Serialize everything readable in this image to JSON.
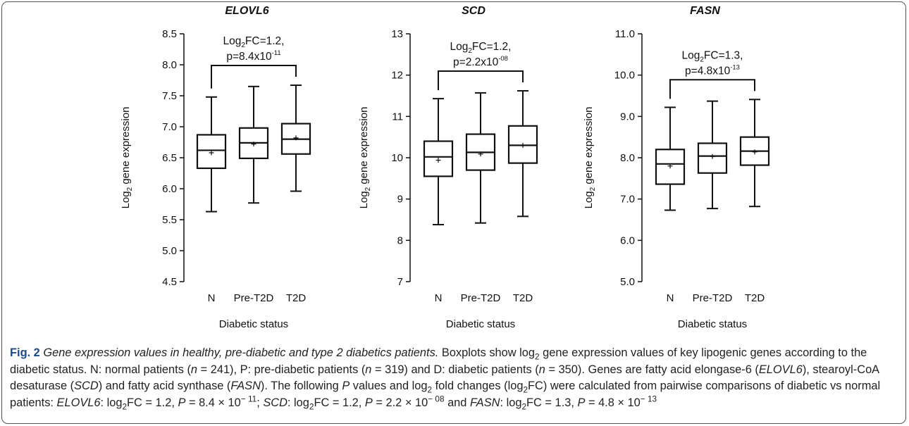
{
  "chart_data": [
    {
      "type": "box",
      "title": "ELOVL6",
      "xlabel": "Diabetic status",
      "ylabel": "Log2 gene expression",
      "categories": [
        "N",
        "Pre-T2D",
        "T2D"
      ],
      "ylim": [
        4.5,
        8.5
      ],
      "yticks": [
        "4.5",
        "5.0",
        "5.5",
        "6.0",
        "6.5",
        "7.0",
        "7.5",
        "8.0",
        "8.5"
      ],
      "boxes": [
        {
          "min": 5.63,
          "q1": 6.33,
          "median": 6.62,
          "q3": 6.87,
          "max": 7.48,
          "mean": 6.58
        },
        {
          "min": 5.77,
          "q1": 6.49,
          "median": 6.74,
          "q3": 6.98,
          "max": 7.65,
          "mean": 6.72
        },
        {
          "min": 5.96,
          "q1": 6.56,
          "median": 6.8,
          "q3": 7.05,
          "max": 7.67,
          "mean": 6.82
        }
      ],
      "annotation": {
        "fc_label": "Log2FC=1.2,",
        "p_prefix": "p=8.4x10",
        "p_exp": "-11"
      }
    },
    {
      "type": "box",
      "title": "SCD",
      "xlabel": "Diabetic status",
      "ylabel": "Log2 gene expression",
      "categories": [
        "N",
        "Pre-T2D",
        "T2D"
      ],
      "ylim": [
        7,
        13
      ],
      "yticks": [
        "7",
        "8",
        "9",
        "10",
        "11",
        "12",
        "13"
      ],
      "boxes": [
        {
          "min": 8.38,
          "q1": 9.55,
          "median": 10.02,
          "q3": 10.4,
          "max": 11.43,
          "mean": 9.94
        },
        {
          "min": 8.42,
          "q1": 9.7,
          "median": 10.13,
          "q3": 10.57,
          "max": 11.57,
          "mean": 10.09
        },
        {
          "min": 8.58,
          "q1": 9.87,
          "median": 10.3,
          "q3": 10.77,
          "max": 11.62,
          "mean": 10.3
        }
      ],
      "annotation": {
        "fc_label": "Log2FC=1.2,",
        "p_prefix": "p=2.2x10",
        "p_exp": "-08"
      }
    },
    {
      "type": "box",
      "title": "FASN",
      "xlabel": "Diabetic status",
      "ylabel": "Log2 gene expression",
      "categories": [
        "N",
        "Pre-T2D",
        "T2D"
      ],
      "ylim": [
        5.0,
        11.0
      ],
      "yticks": [
        "5.0",
        "6.0",
        "7.0",
        "8.0",
        "9.0",
        "10.0",
        "11.0"
      ],
      "boxes": [
        {
          "min": 6.73,
          "q1": 7.36,
          "median": 7.85,
          "q3": 8.2,
          "max": 9.22,
          "mean": 7.8
        },
        {
          "min": 6.77,
          "q1": 7.63,
          "median": 8.04,
          "q3": 8.35,
          "max": 9.37,
          "mean": 8.03
        },
        {
          "min": 6.82,
          "q1": 7.82,
          "median": 8.16,
          "q3": 8.5,
          "max": 9.41,
          "mean": 8.14
        }
      ],
      "annotation": {
        "fc_label": "Log2FC=1.3,",
        "p_prefix": "p=4.8x10",
        "p_exp": "-13"
      }
    }
  ],
  "caption": {
    "fig_label": "Fig. 2",
    "title": "Gene expression values in healthy, pre-diabetic and type 2 diabetics patients.",
    "s1a": "Boxplots show log",
    "s1b": " gene expression values of key lipogenic genes according to the diabetic status. N: normal patients (",
    "n_sym": "n",
    "n1": " = 241), P: pre-diabetic patients (",
    "n2": " = 319) and D: diabetic patients (",
    "n3": " = 350). Genes are fatty acid elongase-6 (",
    "gene1": "ELOVL6",
    "g1b": "), stearoyl-CoA desaturase (",
    "gene2": "SCD",
    "g2b": ") and fatty acid synthase (",
    "gene3": "FASN",
    "g3b": "). The following ",
    "p_sym": "P",
    "s2a": " values and log",
    "s2b": " fold changes (log",
    "s2c": "FC) were calculated from pairwise comparisons of diabetic vs normal patients: ",
    "r1a": ": log",
    "r1b": "FC = 1.2, ",
    "r1c": " = 8.4 × 10",
    "r1exp": "− 11",
    "r2c": " = 2.2 × 10",
    "r2exp": "− 08",
    "and": " and ",
    "r3b": "FC = 1.3, ",
    "r3c": " = 4.8 × 10",
    "r3exp": "− 13",
    "sep": "; ",
    "sub2": "2"
  }
}
